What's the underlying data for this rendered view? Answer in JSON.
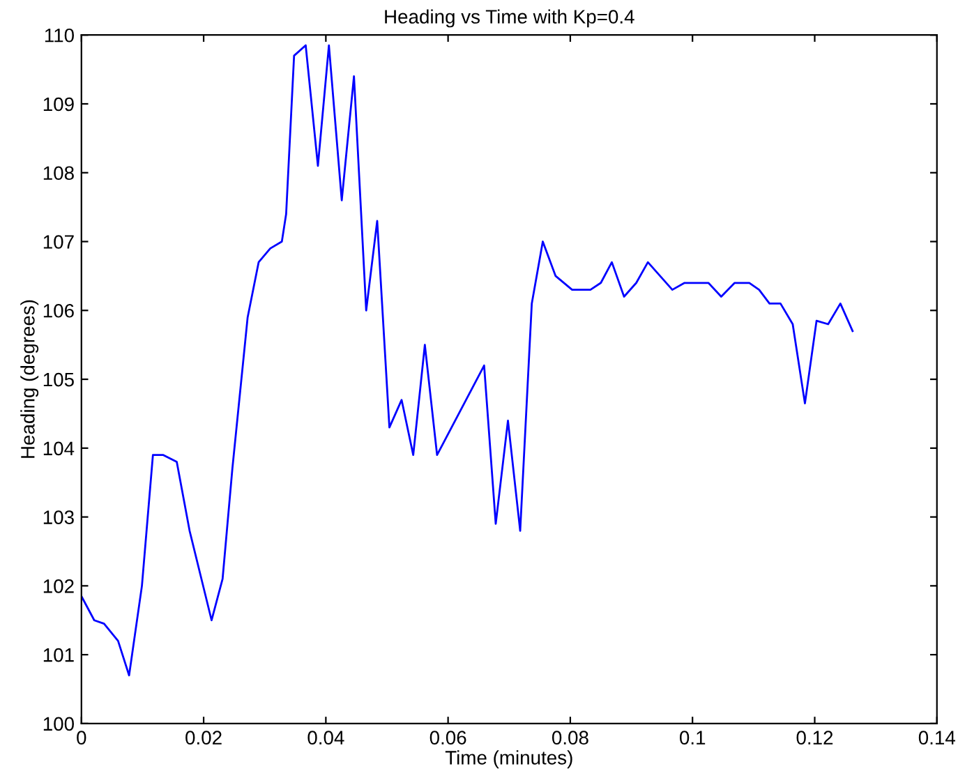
{
  "chart_data": {
    "type": "line",
    "title": "Heading vs Time with Kp=0.4",
    "xlabel": "Time (minutes)",
    "ylabel": "Heading (degrees)",
    "x": [
      0,
      0.0021,
      0.0037,
      0.006,
      0.0078,
      0.0099,
      0.0117,
      0.0134,
      0.0156,
      0.0177,
      0.0213,
      0.0231,
      0.0247,
      0.0272,
      0.029,
      0.0309,
      0.0328,
      0.0335,
      0.0348,
      0.0367,
      0.0387,
      0.0405,
      0.0426,
      0.0446,
      0.0466,
      0.0484,
      0.0504,
      0.0524,
      0.0543,
      0.0562,
      0.0582,
      0.0659,
      0.0678,
      0.0698,
      0.0718,
      0.0737,
      0.0755,
      0.0776,
      0.0803,
      0.0833,
      0.085,
      0.0868,
      0.0888,
      0.0908,
      0.0927,
      0.0947,
      0.0967,
      0.0987,
      0.1026,
      0.1047,
      0.1069,
      0.1093,
      0.1109,
      0.1126,
      0.1144,
      0.1164,
      0.1184,
      0.1203,
      0.1222,
      0.1242,
      0.1262
    ],
    "series": [
      {
        "color": "#0000ff",
        "values": [
          101.85,
          101.5,
          101.45,
          101.2,
          100.7,
          102.0,
          103.9,
          103.9,
          103.8,
          102.8,
          101.5,
          102.1,
          103.7,
          105.9,
          106.7,
          106.9,
          107.0,
          107.4,
          109.7,
          109.85,
          108.1,
          109.85,
          107.6,
          109.4,
          106.0,
          107.3,
          104.3,
          104.7,
          103.9,
          105.5,
          103.9,
          105.2,
          102.9,
          104.4,
          102.8,
          106.1,
          107.0,
          106.5,
          106.3,
          106.3,
          106.4,
          106.7,
          106.2,
          106.4,
          106.7,
          106.5,
          106.3,
          106.4,
          106.4,
          106.2,
          106.4,
          106.4,
          106.3,
          106.1,
          106.1,
          105.8,
          104.65,
          105.85,
          105.8,
          106.1,
          105.7
        ]
      }
    ],
    "xlim": [
      0,
      0.14
    ],
    "xticks": [
      0,
      0.02,
      0.04,
      0.06,
      0.08,
      0.1,
      0.12,
      0.14
    ],
    "ylim": [
      100,
      110
    ],
    "yticks": [
      100,
      101,
      102,
      103,
      104,
      105,
      106,
      107,
      108,
      109,
      110
    ],
    "grid": false,
    "line_style": "solid",
    "marker": "none"
  }
}
